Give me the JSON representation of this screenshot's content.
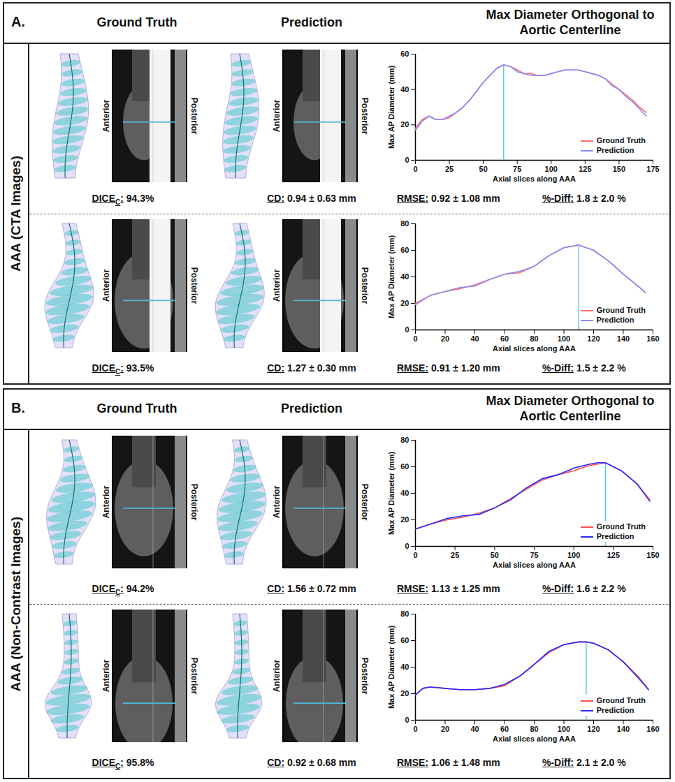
{
  "panels": [
    {
      "letter": "A.",
      "columns": [
        "Ground Truth",
        "Prediction",
        "Max Diameter Orthogonal to Aortic Centerline"
      ],
      "side_label": "AAA (CTA Images)",
      "rows": [
        {
          "image_labels": [
            "Anterior",
            "Posterior"
          ],
          "metrics": [
            {
              "label": "DICE",
              "sub": "C",
              "after": ":",
              "text": "94.3%"
            },
            {
              "label": "CD:",
              "text": "0.94 ± 0.63 mm"
            },
            {
              "label": "RMSE:",
              "text": "0.92 ± 1.08 mm"
            },
            {
              "label": "%-Diff:",
              "text": "1.8 ± 2.0 %"
            }
          ]
        },
        {
          "image_labels": [
            "Anterior",
            "Posterior"
          ],
          "metrics": [
            {
              "label": "DICE",
              "sub": "C",
              "after": ":",
              "text": "93.5%"
            },
            {
              "label": "CD:",
              "text": "1.27 ± 0.30 mm"
            },
            {
              "label": "RMSE:",
              "text": "0.91 ± 1.20 mm"
            },
            {
              "label": "%-Diff:",
              "text": "1.5 ± 2.2 %"
            }
          ]
        }
      ]
    },
    {
      "letter": "B.",
      "columns": [
        "Ground Truth",
        "Prediction",
        "Max Diameter Orthogonal to Aortic Centerline"
      ],
      "side_label": "AAA (Non-Contrast Images)",
      "rows": [
        {
          "image_labels": [
            "Anterior",
            "Posterior"
          ],
          "metrics": [
            {
              "label": "DICE",
              "sub": "C",
              "after": ":",
              "text": "94.2%"
            },
            {
              "label": "CD:",
              "text": "1.56 ± 0.72 mm"
            },
            {
              "label": "RMSE:",
              "text": "1.13 ± 1.25 mm"
            },
            {
              "label": "%-Diff:",
              "text": "1.6 ± 2.2 %"
            }
          ]
        },
        {
          "image_labels": [
            "Anterior",
            "Posterior"
          ],
          "metrics": [
            {
              "label": "DICE",
              "sub": "C",
              "after": ":",
              "text": "95.8%"
            },
            {
              "label": "CD:",
              "text": "0.92 ± 0.68 mm"
            },
            {
              "label": "RMSE:",
              "text": "1.06 ± 1.48 mm"
            },
            {
              "label": "%-Diff:",
              "text": "2.1 ± 2.0 %"
            }
          ]
        }
      ]
    }
  ],
  "chart_data": [
    {
      "type": "line",
      "x_label": "Axial slices along AAA",
      "y_label": "Max AP Diameter (mm)",
      "xlim": [
        0,
        175
      ],
      "xticks": [
        0,
        25,
        50,
        75,
        100,
        125,
        150,
        175
      ],
      "ylim": [
        0,
        60
      ],
      "yticks": [
        0,
        20,
        40,
        60
      ],
      "grid": false,
      "legend": "bottom-right",
      "x": [
        0,
        5,
        10,
        15,
        20,
        25,
        30,
        35,
        40,
        45,
        50,
        55,
        60,
        65,
        70,
        75,
        80,
        85,
        90,
        95,
        100,
        105,
        110,
        115,
        120,
        125,
        130,
        135,
        140,
        145,
        150,
        155,
        160,
        165,
        170
      ],
      "series": [
        {
          "name": "Ground Truth",
          "color": "#ff6b6b",
          "values": [
            18,
            23,
            25,
            23,
            23,
            24,
            27,
            30,
            34,
            39,
            44,
            48,
            52,
            54,
            53,
            51,
            49,
            49,
            48,
            48,
            49,
            50,
            51,
            51,
            51,
            50,
            49,
            48,
            46,
            43,
            40,
            37,
            34,
            30,
            27
          ]
        },
        {
          "name": "Prediction",
          "color": "#8a8aff",
          "values": [
            17,
            22,
            25,
            23,
            23,
            25,
            27,
            30,
            34,
            39,
            44,
            48,
            52,
            54,
            53,
            50,
            49,
            48,
            48,
            48,
            49,
            50,
            51,
            51,
            51,
            50,
            49,
            48,
            46,
            42,
            40,
            36,
            33,
            29,
            25
          ]
        }
      ],
      "max_x": 65
    },
    {
      "type": "line",
      "x_label": "Axial slices along AAA",
      "y_label": "Max AP Diameter (mm)",
      "xlim": [
        0,
        160
      ],
      "xticks": [
        0,
        20,
        40,
        60,
        80,
        100,
        120,
        140,
        160
      ],
      "ylim": [
        0,
        80
      ],
      "yticks": [
        0,
        20,
        40,
        60,
        80
      ],
      "grid": false,
      "legend": "bottom-right",
      "x": [
        0,
        10,
        20,
        30,
        40,
        50,
        60,
        70,
        80,
        90,
        100,
        110,
        120,
        130,
        140,
        150,
        155
      ],
      "series": [
        {
          "name": "Ground Truth",
          "color": "#ff6b6b",
          "values": [
            20,
            26,
            29,
            31,
            34,
            38,
            42,
            43,
            48,
            56,
            62,
            64,
            60,
            52,
            42,
            33,
            28
          ]
        },
        {
          "name": "Prediction",
          "color": "#8a8aff",
          "values": [
            19,
            26,
            29,
            32,
            33,
            38,
            42,
            44,
            48,
            56,
            62,
            64,
            60,
            52,
            42,
            33,
            28
          ]
        }
      ],
      "max_x": 110
    },
    {
      "type": "line",
      "x_label": "Axial slices along AAA",
      "y_label": "Max AP Diameter (mm)",
      "xlim": [
        0,
        150
      ],
      "xticks": [
        0,
        25,
        50,
        75,
        100,
        125,
        150
      ],
      "ylim": [
        0,
        80
      ],
      "yticks": [
        0,
        20,
        40,
        60,
        80
      ],
      "grid": false,
      "legend": "bottom-right",
      "x": [
        0,
        10,
        20,
        30,
        40,
        50,
        60,
        70,
        80,
        90,
        100,
        110,
        115,
        120,
        130,
        140,
        148
      ],
      "series": [
        {
          "name": "Ground Truth",
          "color": "#ff4d4d",
          "values": [
            13,
            17,
            20,
            22,
            25,
            29,
            36,
            43,
            50,
            54,
            57,
            61,
            62,
            63,
            57,
            47,
            35
          ]
        },
        {
          "name": "Prediction",
          "color": "#2a2aff",
          "values": [
            13,
            17,
            21,
            23,
            24,
            29,
            35,
            44,
            51,
            54,
            59,
            62,
            63,
            63,
            57,
            47,
            34
          ]
        }
      ],
      "max_x": 120
    },
    {
      "type": "line",
      "x_label": "Axial slices along AAA",
      "y_label": "Max AP Diameter (mm)",
      "xlim": [
        0,
        160
      ],
      "xticks": [
        0,
        20,
        40,
        60,
        80,
        100,
        120,
        140,
        160
      ],
      "ylim": [
        0,
        80
      ],
      "yticks": [
        0,
        20,
        40,
        60,
        80
      ],
      "grid": false,
      "legend": "bottom-right",
      "x": [
        0,
        5,
        10,
        20,
        30,
        40,
        50,
        60,
        70,
        80,
        90,
        100,
        110,
        115,
        120,
        130,
        140,
        150,
        157
      ],
      "series": [
        {
          "name": "Ground Truth",
          "color": "#ff4d4d",
          "values": [
            19,
            24,
            25,
            24,
            23,
            23,
            24,
            26,
            33,
            42,
            51,
            57,
            59,
            59,
            58,
            53,
            44,
            33,
            23
          ]
        },
        {
          "name": "Prediction",
          "color": "#2a2aff",
          "values": [
            19,
            24,
            25,
            24,
            23,
            23,
            24,
            27,
            33,
            42,
            52,
            57,
            59,
            59,
            58,
            53,
            44,
            32,
            23
          ]
        }
      ],
      "max_x": 115
    }
  ]
}
